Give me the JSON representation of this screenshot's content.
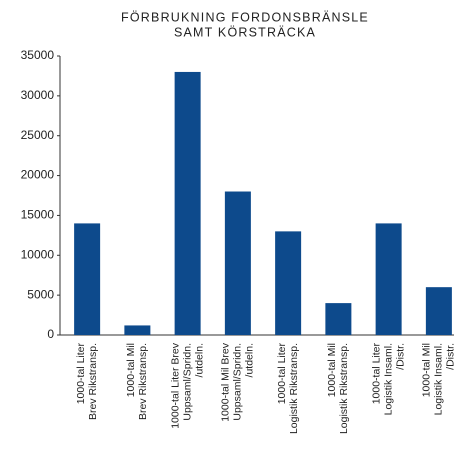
{
  "chart_data": {
    "type": "bar",
    "title": [
      "FÖRBRUKNING FORDONSBRÄNSLE",
      "SAMT KÖRSTRÄCKA"
    ],
    "categories": [
      [
        "1000-tal Liter",
        "Brev Rikstransp."
      ],
      [
        "1000-tal Mil",
        "Brev Rikstransp."
      ],
      [
        "1000-tal Liter Brev",
        "Uppsaml/Spridn.",
        "/utdeln."
      ],
      [
        "1000-tal Mil Brev",
        "Uppsaml/Spridn.",
        "/utdeln."
      ],
      [
        "1000-tal Liter",
        "Logistik Rikstransp."
      ],
      [
        "1000-tal Mil",
        "Logistik Rikstransp."
      ],
      [
        "1000-tal Liter",
        "Logistik Insaml.",
        "/Distr."
      ],
      [
        "1000-tal Mil",
        "Logistik Insaml.",
        "/Distr."
      ]
    ],
    "values": [
      14000,
      1200,
      33000,
      18000,
      13000,
      4000,
      14000,
      6000
    ],
    "color": "#0d4a8c",
    "ylim": [
      0,
      35000
    ],
    "yticks": [
      0,
      5000,
      10000,
      15000,
      20000,
      25000,
      30000,
      35000
    ],
    "grid": false
  }
}
